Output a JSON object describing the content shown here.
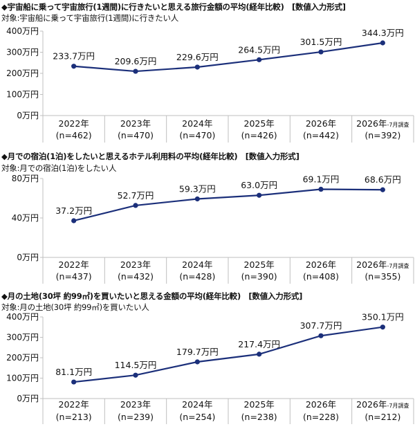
{
  "style": {
    "line_color": "#1b2f7a",
    "grid_color": "#bfbfbf"
  },
  "chart_data": [
    {
      "type": "line",
      "title": "◆宇宙船に乗って宇宙旅行(1週間)に行きたいと思える旅行金額の平均(経年比較)　[数値入力形式]",
      "subtitle": "対象:宇宙船に乗って宇宙旅行(1週間)に行きたい人",
      "categories": [
        "2022年",
        "2023年",
        "2024年",
        "2025年",
        "2026年",
        "2026年"
      ],
      "category_notes": [
        "",
        "",
        "",
        "",
        "",
        "-7月調査"
      ],
      "n_labels": [
        "(n=462)",
        "(n=470)",
        "(n=470)",
        "(n=426)",
        "(n=442)",
        "(n=392)"
      ],
      "values": [
        233.7,
        209.6,
        229.6,
        264.5,
        301.5,
        344.3
      ],
      "value_labels": [
        "233.7万円",
        "209.6万円",
        "229.6万円",
        "264.5万円",
        "301.5万円",
        "344.3万円"
      ],
      "y_ticks": [
        0,
        100,
        200,
        300,
        400
      ],
      "y_tick_labels": [
        "0万円",
        "100万円",
        "200万円",
        "300万円",
        "400万円"
      ],
      "ylim": [
        0,
        400
      ],
      "grid": false
    },
    {
      "type": "line",
      "title": "◆月での宿泊(1泊)をしたいと思えるホテル利用料の平均(経年比較)　[数値入力形式]",
      "subtitle": "対象:月での宿泊(1泊)をしたい人",
      "categories": [
        "2022年",
        "2023年",
        "2024年",
        "2025年",
        "2026年",
        "2026年"
      ],
      "category_notes": [
        "",
        "",
        "",
        "",
        "",
        "-7月調査"
      ],
      "n_labels": [
        "(n=437)",
        "(n=432)",
        "(n=428)",
        "(n=390)",
        "(n=408)",
        "(n=355)"
      ],
      "values": [
        37.2,
        52.7,
        59.3,
        63.0,
        69.1,
        68.6
      ],
      "value_labels": [
        "37.2万円",
        "52.7万円",
        "59.3万円",
        "63.0万円",
        "69.1万円",
        "68.6万円"
      ],
      "y_ticks": [
        0,
        40,
        80
      ],
      "y_tick_labels": [
        "0万円",
        "40万円",
        "80万円"
      ],
      "ylim": [
        0,
        80
      ],
      "grid": false
    },
    {
      "type": "line",
      "title": "◆月の土地(30坪 約99㎡)を買いたいと思える金額の平均(経年比較)　[数値入力形式]",
      "subtitle": "対象:月の土地(30坪 約99㎡)を買いたい人",
      "categories": [
        "2022年",
        "2023年",
        "2024年",
        "2025年",
        "2026年",
        "2026年"
      ],
      "category_notes": [
        "",
        "",
        "",
        "",
        "",
        "-7月調査"
      ],
      "n_labels": [
        "(n=213)",
        "(n=239)",
        "(n=254)",
        "(n=238)",
        "(n=228)",
        "(n=212)"
      ],
      "values": [
        81.1,
        114.5,
        179.7,
        217.4,
        307.7,
        350.1
      ],
      "value_labels": [
        "81.1万円",
        "114.5万円",
        "179.7万円",
        "217.4万円",
        "307.7万円",
        "350.1万円"
      ],
      "y_ticks": [
        0,
        100,
        200,
        300,
        400
      ],
      "y_tick_labels": [
        "0万円",
        "100万円",
        "200万円",
        "300万円",
        "400万円"
      ],
      "ylim": [
        0,
        400
      ],
      "grid": false
    }
  ]
}
